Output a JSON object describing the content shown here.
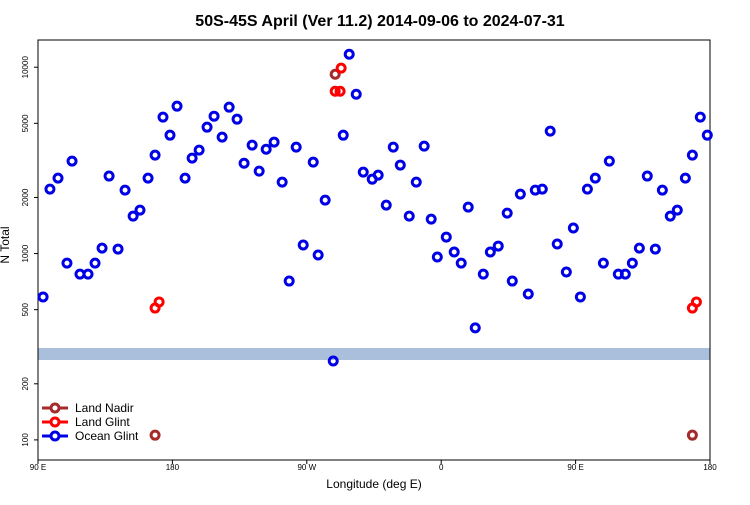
{
  "chart_data": {
    "type": "scatter",
    "title": "50S-45S April (Ver 11.2)   2014-09-06 to 2024-07-31",
    "xlabel": "Longitude (deg E)",
    "ylabel": "N Total",
    "xlim": [
      90,
      540
    ],
    "xticks": [
      {
        "value": 90,
        "label": "90 E"
      },
      180,
      {
        "value": 270,
        "label": "90 W"
      },
      {
        "value": 360,
        "label": "0"
      },
      {
        "value": 450,
        "label": "90 E"
      },
      {
        "value": 540,
        "label": "180"
      }
    ],
    "ylim": [
      78,
      14000
    ],
    "yticks": [
      100,
      200,
      500,
      1000,
      2000,
      5000,
      10000
    ],
    "log_y": true,
    "legend": "lower left",
    "series": [
      {
        "name": "Ocean Glint",
        "color": "#0000e6",
        "x": [
          93.4,
          98,
          103.4,
          109.4,
          112.8,
          118.1,
          123.5,
          128.2,
          132.9,
          137.6,
          143.6,
          148.3,
          153.7,
          158.3,
          163.7,
          168.4,
          173.7,
          178.4,
          183.1,
          188.5,
          193.2,
          197.9,
          203.2,
          207.9,
          213.3,
          218,
          223.3,
          228,
          233.4,
          238.1,
          242.8,
          248.1,
          253.5,
          258.2,
          262.9,
          267.6,
          274.3,
          277.6,
          282.3,
          287.7,
          294.4,
          298.4,
          303.1,
          307.8,
          313.8,
          317.8,
          323.2,
          327.9,
          332.6,
          338.6,
          343.3,
          348.6,
          353.3,
          357.4,
          363.4,
          368.7,
          373.4,
          378.1,
          382.8,
          388.2,
          392.9,
          398.2,
          404.2,
          407.6,
          413,
          418.3,
          423,
          427.7,
          433,
          437.7,
          443.8,
          448.5,
          453.2,
          457.9,
          463.2,
          468.6,
          472.6,
          478.6,
          483.3,
          488,
          492.7,
          498,
          503.4,
          508.1,
          513.4,
          518.1,
          523.5,
          528.2,
          533.5,
          538.2
        ],
        "values": [
          585,
          2218,
          2541,
          889,
          3133,
          776,
          776,
          889,
          1070,
          2606,
          1057,
          2190,
          1589,
          1711,
          2541,
          3376,
          5395,
          4318,
          6180,
          2541,
          3251,
          3589,
          4767,
          5460,
          4215,
          6104,
          5262,
          3054,
          3818,
          2768,
          3631,
          3963,
          2418,
          712,
          3724,
          1111,
          3095,
          982,
          1936,
          265,
          4318,
          11740,
          7165,
          2735,
          2507,
          2636,
          1820,
          3724,
          2985,
          1589,
          2418,
          3770,
          1531,
          958,
          1226,
          1019,
          889,
          1775,
          399,
          776,
          1019,
          1097,
          1648,
          712,
          2085,
          607,
          2190,
          2218,
          4539,
          1125,
          796,
          1371,
          585,
          2218,
          2541,
          889,
          3133,
          776,
          776,
          889,
          1070,
          2606,
          1057,
          2190,
          1589,
          1711,
          2541,
          3376,
          5395,
          4318
        ]
      },
      {
        "name": "Land Nadir",
        "color": "#a52a2a",
        "x": [
          168.4,
          289,
          528.2
        ],
        "values": [
          106,
          9170,
          106
        ]
      },
      {
        "name": "Land Glint",
        "color": "#ff0000",
        "x": [
          168.4,
          171.1,
          293,
          289,
          292.3,
          528.2,
          530.9
        ],
        "values": [
          510,
          550,
          9890,
          7430,
          7430,
          510,
          550
        ]
      }
    ]
  }
}
